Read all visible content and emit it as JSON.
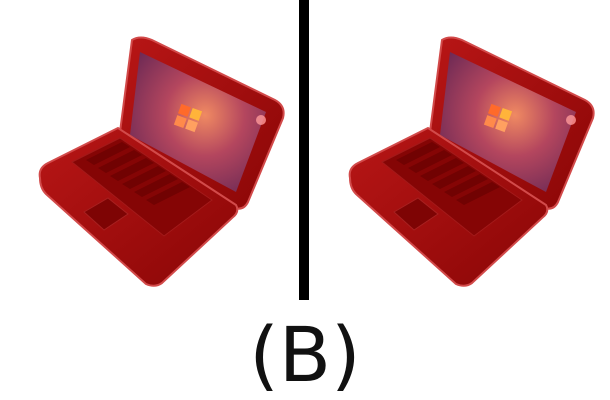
{
  "figure": {
    "label": "(B)",
    "panels": [
      {
        "subject": "laptop",
        "body_color": "#9e0a0a",
        "screen_logo": "windows-logo-icon"
      },
      {
        "subject": "laptop",
        "body_color": "#9e0a0a",
        "screen_logo": "windows-logo-icon"
      }
    ],
    "colors": {
      "laptop_body": "#9e0a0a",
      "laptop_edge": "#d04848",
      "screen_glow": "#e8745a",
      "screen_base": "#7a2a55",
      "divider": "#000000"
    }
  }
}
